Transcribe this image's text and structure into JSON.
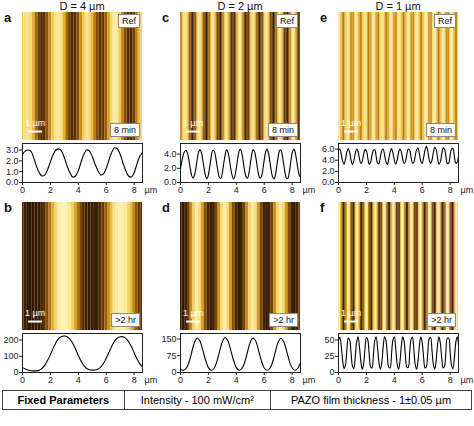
{
  "chart_data": [
    {
      "panel": "a",
      "title": "D = 4 µm",
      "type": "line",
      "corner_label": "Ref",
      "time": "8 min",
      "scale_bar": {
        "value": 1,
        "label": "1 µm"
      },
      "xlabel": "µm",
      "color": "#000000",
      "xlim": [
        0,
        8.6
      ],
      "xticks": [
        0,
        2,
        4,
        6,
        8
      ],
      "ylim": [
        0,
        3.6
      ],
      "yticks": [
        0,
        1,
        2,
        3
      ],
      "x": [
        0,
        0.2,
        0.4,
        0.6,
        0.8,
        1,
        1.2,
        1.4,
        1.6,
        1.8,
        2,
        2.2,
        2.4,
        2.6,
        2.8,
        3,
        3.2,
        3.4,
        3.6,
        3.8,
        4,
        4.2,
        4.4,
        4.6,
        4.8,
        5,
        5.2,
        5.4,
        5.6,
        5.8,
        6,
        6.2,
        6.4,
        6.6,
        6.8,
        7,
        7.2,
        7.4,
        7.6,
        7.8,
        8,
        8.2,
        8.4,
        8.6
      ],
      "values": [
        2.6,
        2.9,
        3.0,
        2.9,
        2.3,
        1.5,
        0.9,
        0.6,
        0.7,
        1.2,
        1.9,
        2.6,
        3.0,
        3.1,
        2.9,
        2.3,
        1.5,
        0.9,
        0.5,
        0.6,
        1.1,
        1.9,
        2.6,
        3.0,
        2.9,
        2.4,
        1.7,
        1.1,
        0.7,
        0.8,
        1.3,
        2.1,
        2.8,
        3.2,
        3.1,
        2.6,
        1.8,
        1.1,
        0.6,
        0.5,
        0.9,
        1.7,
        2.4,
        2.8
      ]
    },
    {
      "panel": "b",
      "type": "line",
      "time": ">2 hr",
      "scale_bar": {
        "value": 1,
        "label": "1 µm"
      },
      "xlabel": "µm",
      "color": "#000000",
      "xlim": [
        0,
        8.6
      ],
      "xticks": [
        0,
        2,
        4,
        6,
        8
      ],
      "ylim": [
        0,
        240
      ],
      "yticks": [
        0,
        100,
        200
      ],
      "x": [
        0,
        0.2,
        0.4,
        0.6,
        0.8,
        1,
        1.2,
        1.4,
        1.6,
        1.8,
        2,
        2.2,
        2.4,
        2.6,
        2.8,
        3,
        3.2,
        3.4,
        3.6,
        3.8,
        4,
        4.2,
        4.4,
        4.6,
        4.8,
        5,
        5.2,
        5.4,
        5.6,
        5.8,
        6,
        6.2,
        6.4,
        6.6,
        6.8,
        7,
        7.2,
        7.4,
        7.6,
        7.8,
        8,
        8.2,
        8.4,
        8.6
      ],
      "values": [
        30,
        22,
        15,
        11,
        10,
        10,
        14,
        25,
        45,
        75,
        110,
        150,
        185,
        210,
        222,
        225,
        220,
        205,
        180,
        145,
        105,
        70,
        42,
        25,
        17,
        15,
        15,
        20,
        33,
        55,
        88,
        125,
        162,
        193,
        212,
        220,
        220,
        210,
        190,
        160,
        122,
        85,
        55,
        35
      ]
    },
    {
      "panel": "c",
      "title": "D = 2 µm",
      "type": "line",
      "corner_label": "Ref",
      "time": "8 min",
      "scale_bar": {
        "value": 1,
        "label": "1 µm"
      },
      "xlabel": "µm",
      "color": "#000000",
      "xlim": [
        0,
        8.6
      ],
      "xticks": [
        0,
        2,
        4,
        6,
        8
      ],
      "ylim": [
        0,
        5.5
      ],
      "yticks": [
        0,
        2,
        4
      ],
      "x": [
        0,
        0.1,
        0.2,
        0.3,
        0.4,
        0.5,
        0.6,
        0.7,
        0.8,
        0.9,
        1,
        1.1,
        1.2,
        1.3,
        1.4,
        1.5,
        1.6,
        1.7,
        1.8,
        1.9,
        2,
        2.1,
        2.2,
        2.3,
        2.4,
        2.5,
        2.6,
        2.7,
        2.8,
        2.9,
        3,
        3.1,
        3.2,
        3.3,
        3.4,
        3.5,
        3.6,
        3.7,
        3.8,
        3.9,
        4,
        4.1,
        4.2,
        4.3,
        4.4,
        4.5,
        4.6,
        4.7,
        4.8,
        4.9,
        5,
        5.1,
        5.2,
        5.3,
        5.4,
        5.5,
        5.6,
        5.7,
        5.8,
        5.9,
        6,
        6.1,
        6.2,
        6.3,
        6.4,
        6.5,
        6.6,
        6.7,
        6.8,
        6.9,
        7,
        7.1,
        7.2,
        7.3,
        7.4,
        7.5,
        7.6,
        7.7,
        7.8,
        7.9,
        8,
        8.1,
        8.2,
        8.3,
        8.4,
        8.5,
        8.6
      ],
      "values": [
        2.0,
        3.0,
        3.9,
        4.4,
        4.5,
        4.1,
        3.2,
        2.0,
        1.0,
        0.6,
        1.0,
        2.0,
        3.3,
        4.3,
        4.6,
        4.2,
        3.1,
        1.9,
        0.9,
        0.5,
        1.1,
        2.3,
        3.6,
        4.5,
        4.5,
        3.8,
        2.6,
        1.4,
        0.7,
        0.6,
        1.4,
        2.7,
        3.9,
        4.6,
        4.3,
        3.3,
        2.0,
        1.0,
        0.5,
        0.9,
        2.0,
        3.4,
        4.4,
        4.7,
        4.1,
        2.9,
        1.6,
        0.8,
        0.6,
        1.3,
        2.6,
        3.9,
        4.6,
        4.4,
        3.5,
        2.2,
        1.1,
        0.6,
        0.8,
        1.8,
        3.2,
        4.3,
        4.7,
        4.2,
        3.0,
        1.7,
        0.8,
        0.5,
        1.0,
        2.3,
        3.6,
        4.5,
        4.6,
        3.8,
        2.5,
        1.3,
        0.6,
        0.6,
        1.5,
        2.9,
        4.1,
        4.7,
        4.4,
        3.4,
        2.1,
        1.1,
        0.7
      ]
    },
    {
      "panel": "d",
      "type": "line",
      "time": ">2 hr",
      "scale_bar": {
        "value": 1,
        "label": "1 µm"
      },
      "xlabel": "µm",
      "color": "#000000",
      "xlim": [
        0,
        8.6
      ],
      "xticks": [
        0,
        2,
        4,
        6,
        8
      ],
      "ylim": [
        0,
        175
      ],
      "yticks": [
        0,
        75,
        150
      ],
      "x": [
        0,
        0.2,
        0.4,
        0.6,
        0.8,
        1,
        1.2,
        1.4,
        1.6,
        1.8,
        2,
        2.2,
        2.4,
        2.6,
        2.8,
        3,
        3.2,
        3.4,
        3.6,
        3.8,
        4,
        4.2,
        4.4,
        4.6,
        4.8,
        5,
        5.2,
        5.4,
        5.6,
        5.8,
        6,
        6.2,
        6.4,
        6.6,
        6.8,
        7,
        7.2,
        7.4,
        7.6,
        7.8,
        8,
        8.2,
        8.4,
        8.6
      ],
      "values": [
        15,
        10,
        18,
        45,
        90,
        135,
        155,
        140,
        100,
        55,
        22,
        10,
        18,
        48,
        95,
        138,
        157,
        142,
        100,
        55,
        22,
        10,
        18,
        46,
        92,
        136,
        155,
        140,
        98,
        52,
        20,
        10,
        18,
        47,
        93,
        137,
        154,
        138,
        97,
        52,
        20,
        10,
        18,
        45
      ]
    },
    {
      "panel": "e",
      "title": "D = 1 µm",
      "type": "line",
      "corner_label": "Ref",
      "time": "8 min",
      "scale_bar": {
        "value": 1,
        "label": "1 µm"
      },
      "xlabel": "µm",
      "color": "#000000",
      "xlim": [
        0,
        8.6
      ],
      "xticks": [
        0,
        2,
        4,
        6,
        8
      ],
      "ylim": [
        0,
        7
      ],
      "yticks": [
        0,
        2,
        4,
        6
      ],
      "x": [
        0,
        0.1,
        0.2,
        0.3,
        0.4,
        0.5,
        0.6,
        0.7,
        0.8,
        0.9,
        1,
        1.1,
        1.2,
        1.3,
        1.4,
        1.5,
        1.6,
        1.7,
        1.8,
        1.9,
        2,
        2.1,
        2.2,
        2.3,
        2.4,
        2.5,
        2.6,
        2.7,
        2.8,
        2.9,
        3,
        3.1,
        3.2,
        3.3,
        3.4,
        3.5,
        3.6,
        3.7,
        3.8,
        3.9,
        4,
        4.1,
        4.2,
        4.3,
        4.4,
        4.5,
        4.6,
        4.7,
        4.8,
        4.9,
        5,
        5.1,
        5.2,
        5.3,
        5.4,
        5.5,
        5.6,
        5.7,
        5.8,
        5.9,
        6,
        6.1,
        6.2,
        6.3,
        6.4,
        6.5,
        6.6,
        6.7,
        6.8,
        6.9,
        7,
        7.1,
        7.2,
        7.3,
        7.4,
        7.5,
        7.6,
        7.7,
        7.8,
        7.9,
        8,
        8.1,
        8.2,
        8.3,
        8.4,
        8.5,
        8.6
      ],
      "values": [
        5.8,
        6.0,
        5.0,
        3.8,
        3.3,
        4.2,
        5.5,
        6.1,
        5.4,
        4.0,
        3.2,
        3.9,
        5.2,
        6.0,
        5.6,
        4.3,
        3.4,
        3.8,
        5.0,
        5.9,
        5.7,
        4.4,
        3.3,
        3.6,
        4.9,
        5.8,
        5.9,
        4.7,
        3.5,
        3.4,
        4.6,
        5.7,
        6.0,
        5.0,
        3.7,
        3.2,
        4.2,
        5.5,
        6.1,
        5.3,
        4.0,
        3.3,
        4.0,
        5.3,
        6.0,
        5.5,
        4.2,
        3.4,
        3.8,
        5.1,
        6.0,
        5.8,
        4.5,
        3.5,
        3.6,
        4.8,
        5.9,
        6.2,
        5.1,
        3.8,
        3.4,
        4.5,
        5.8,
        6.5,
        5.6,
        4.1,
        3.4,
        4.0,
        5.4,
        6.3,
        5.9,
        4.4,
        3.3,
        3.7,
        5.1,
        6.2,
        6.0,
        4.6,
        3.4,
        3.5,
        4.9,
        6.0,
        6.1,
        4.8,
        3.5,
        3.6,
        4.9
      ]
    },
    {
      "panel": "f",
      "type": "line",
      "time": ">2 hr",
      "scale_bar": {
        "value": 1,
        "label": "1 µm"
      },
      "xlabel": "µm",
      "color": "#000000",
      "xlim": [
        0,
        8.6
      ],
      "xticks": [
        0,
        2,
        4,
        6,
        8
      ],
      "ylim": [
        0,
        60
      ],
      "yticks": [
        0,
        25,
        50
      ],
      "x": [
        0,
        0.1,
        0.2,
        0.3,
        0.4,
        0.5,
        0.6,
        0.7,
        0.8,
        0.9,
        1,
        1.1,
        1.2,
        1.3,
        1.4,
        1.5,
        1.6,
        1.7,
        1.8,
        1.9,
        2,
        2.1,
        2.2,
        2.3,
        2.4,
        2.5,
        2.6,
        2.7,
        2.8,
        2.9,
        3,
        3.1,
        3.2,
        3.3,
        3.4,
        3.5,
        3.6,
        3.7,
        3.8,
        3.9,
        4,
        4.1,
        4.2,
        4.3,
        4.4,
        4.5,
        4.6,
        4.7,
        4.8,
        4.9,
        5,
        5.1,
        5.2,
        5.3,
        5.4,
        5.5,
        5.6,
        5.7,
        5.8,
        5.9,
        6,
        6.1,
        6.2,
        6.3,
        6.4,
        6.5,
        6.6,
        6.7,
        6.8,
        6.9,
        7,
        7.1,
        7.2,
        7.3,
        7.4,
        7.5,
        7.6,
        7.7,
        7.8,
        7.9,
        8,
        8.1,
        8.2,
        8.3,
        8.4,
        8.5,
        8.6
      ],
      "values": [
        50,
        54,
        40,
        18,
        6,
        12,
        35,
        53,
        50,
        30,
        10,
        6,
        24,
        47,
        55,
        40,
        17,
        5,
        13,
        37,
        54,
        50,
        28,
        9,
        7,
        26,
        49,
        55,
        38,
        15,
        5,
        15,
        39,
        55,
        49,
        27,
        8,
        7,
        28,
        50,
        55,
        37,
        14,
        5,
        16,
        40,
        55,
        48,
        25,
        8,
        8,
        30,
        51,
        54,
        35,
        12,
        5,
        18,
        42,
        55,
        46,
        23,
        7,
        9,
        31,
        52,
        54,
        34,
        12,
        5,
        19,
        43,
        55,
        45,
        22,
        7,
        10,
        33,
        53,
        53,
        32,
        11,
        6,
        21,
        45,
        55,
        43
      ]
    }
  ],
  "footer": {
    "heading": "Fixed Parameters",
    "items": [
      "Intensity - 100 mW/cm²",
      "PAZO film thickness - 1±0.05 µm"
    ]
  }
}
